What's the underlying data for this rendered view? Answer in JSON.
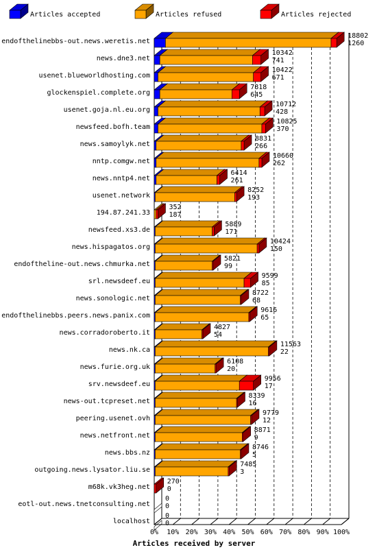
{
  "chart_data": {
    "type": "bar",
    "orientation": "horizontal",
    "stacked": true,
    "xlabel": "Articles received by server",
    "ylabel": "",
    "x_ticks": [
      "0%",
      "10%",
      "20%",
      "30%",
      "40%",
      "50%",
      "60%",
      "70%",
      "80%",
      "90%",
      "100%"
    ],
    "xlim": [
      0,
      100
    ],
    "grid": "vertical-dashed",
    "legend_position": "top",
    "colors": {
      "accepted": "#0000ff",
      "refused": "#ffa500",
      "rejected": "#ff0000"
    },
    "series": [
      {
        "name": "Articles accepted",
        "key": "accepted",
        "color": "#0000ff"
      },
      {
        "name": "Articles refused",
        "key": "refused",
        "color": "#ffa500"
      },
      {
        "name": "Articles rejected",
        "key": "rejected",
        "color": "#ff0000"
      }
    ],
    "rows": [
      {
        "server": "endofthelinebbs-out.news.weretis.net",
        "total": "18802",
        "rejected_count": "1260",
        "accepted_pct": 6.0,
        "refused_pct": 88.5,
        "rejected_pct": 3.0
      },
      {
        "server": "news.dne3.net",
        "total": "10342",
        "rejected_count": "741",
        "accepted_pct": 3.0,
        "refused_pct": 49.5,
        "rejected_pct": 4.5
      },
      {
        "server": "usenet.blueworldhosting.com",
        "total": "10422",
        "rejected_count": "671",
        "accepted_pct": 2.0,
        "refused_pct": 51.0,
        "rejected_pct": 4.0
      },
      {
        "server": "glockenspiel.complete.org",
        "total": "7818",
        "rejected_count": "645",
        "accepted_pct": 3.0,
        "refused_pct": 38.5,
        "rejected_pct": 4.0
      },
      {
        "server": "usenet.goja.nl.eu.org",
        "total": "10712",
        "rejected_count": "428",
        "accepted_pct": 2.0,
        "refused_pct": 54.5,
        "rejected_pct": 2.5
      },
      {
        "server": "newsfeed.bofh.team",
        "total": "10825",
        "rejected_count": "370",
        "accepted_pct": 2.0,
        "refused_pct": 55.5,
        "rejected_pct": 2.0
      },
      {
        "server": "news.samoylyk.net",
        "total": "8831",
        "rejected_count": "266",
        "accepted_pct": 1.0,
        "refused_pct": 45.5,
        "rejected_pct": 1.5
      },
      {
        "server": "nntp.comgw.net",
        "total": "10660",
        "rejected_count": "262",
        "accepted_pct": 1.0,
        "refused_pct": 55.0,
        "rejected_pct": 1.5
      },
      {
        "server": "news.nntp4.net",
        "total": "6414",
        "rejected_count": "261",
        "accepted_pct": 1.0,
        "refused_pct": 32.5,
        "rejected_pct": 1.5
      },
      {
        "server": "usenet.network",
        "total": "8252",
        "rejected_count": "193",
        "accepted_pct": 0.5,
        "refused_pct": 42.5,
        "rejected_pct": 1.0
      },
      {
        "server": "194.87.241.33",
        "total": "352",
        "rejected_count": "187",
        "accepted_pct": 0.0,
        "refused_pct": 1.0,
        "rejected_pct": 1.0
      },
      {
        "server": "newsfeed.xs3.de",
        "total": "5889",
        "rejected_count": "171",
        "accepted_pct": 0.5,
        "refused_pct": 30.5,
        "rejected_pct": 1.0
      },
      {
        "server": "news.hispagatos.org",
        "total": "10424",
        "rejected_count": "150",
        "accepted_pct": 0.5,
        "refused_pct": 54.5,
        "rejected_pct": 1.0
      },
      {
        "server": "endoftheline-out.news.chmurka.net",
        "total": "5821",
        "rejected_count": "99",
        "accepted_pct": 0.5,
        "refused_pct": 30.5,
        "rejected_pct": 0.5
      },
      {
        "server": "srl.newsdeef.eu",
        "total": "9599",
        "rejected_count": "85",
        "accepted_pct": 0.5,
        "refused_pct": 47.5,
        "rejected_pct": 3.5
      },
      {
        "server": "news.sonologic.net",
        "total": "8722",
        "rejected_count": "68",
        "accepted_pct": 0.5,
        "refused_pct": 45.5,
        "rejected_pct": 0.5
      },
      {
        "server": "endofthelinebbs.peers.news.panix.com",
        "total": "9616",
        "rejected_count": "65",
        "accepted_pct": 0.5,
        "refused_pct": 50.0,
        "rejected_pct": 0.5
      },
      {
        "server": "news.corradoroberto.it",
        "total": "4827",
        "rejected_count": "54",
        "accepted_pct": 0.5,
        "refused_pct": 25.0,
        "rejected_pct": 0.5
      },
      {
        "server": "news.nk.ca",
        "total": "11563",
        "rejected_count": "22",
        "accepted_pct": 0.5,
        "refused_pct": 60.5,
        "rejected_pct": 0.5
      },
      {
        "server": "news.furie.org.uk",
        "total": "6108",
        "rejected_count": "20",
        "accepted_pct": 0.5,
        "refused_pct": 32.0,
        "rejected_pct": 0.5
      },
      {
        "server": "srv.newsdeef.eu",
        "total": "9956",
        "rejected_count": "17",
        "accepted_pct": 0.5,
        "refused_pct": 45.0,
        "rejected_pct": 7.5
      },
      {
        "server": "news-out.tcpreset.net",
        "total": "8339",
        "rejected_count": "16",
        "accepted_pct": 0.5,
        "refused_pct": 43.5,
        "rejected_pct": 0.5
      },
      {
        "server": "peering.usenet.ovh",
        "total": "9779",
        "rejected_count": "12",
        "accepted_pct": 0.5,
        "refused_pct": 51.0,
        "rejected_pct": 0.5
      },
      {
        "server": "news.netfront.net",
        "total": "8871",
        "rejected_count": "9",
        "accepted_pct": 0.5,
        "refused_pct": 46.5,
        "rejected_pct": 0.5
      },
      {
        "server": "news.bbs.nz",
        "total": "8746",
        "rejected_count": "5",
        "accepted_pct": 0.5,
        "refused_pct": 45.5,
        "rejected_pct": 0.5
      },
      {
        "server": "outgoing.news.lysator.liu.se",
        "total": "7485",
        "rejected_count": "3",
        "accepted_pct": 0.5,
        "refused_pct": 39.0,
        "rejected_pct": 0.5
      },
      {
        "server": "m68k.vk3heg.net",
        "total": "270",
        "rejected_count": "0",
        "accepted_pct": 0.0,
        "refused_pct": 0.0,
        "rejected_pct": 1.0
      },
      {
        "server": "eotl-out.news.tnetconsulting.net",
        "total": "0",
        "rejected_count": "0",
        "accepted_pct": 0.0,
        "refused_pct": 0.0,
        "rejected_pct": 0.0
      },
      {
        "server": "localhost",
        "total": "0",
        "rejected_count": "0",
        "accepted_pct": 0.0,
        "refused_pct": 0.0,
        "rejected_pct": 0.0
      }
    ]
  }
}
